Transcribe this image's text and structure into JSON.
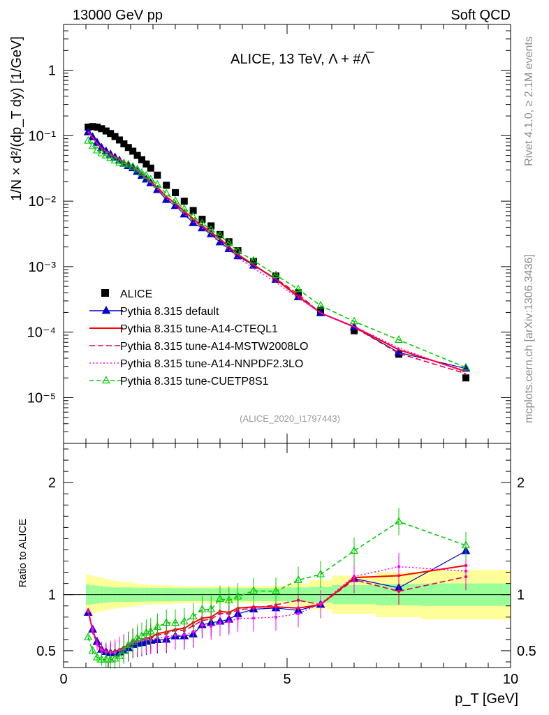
{
  "header": {
    "left": "13000 GeV pp",
    "right": "Soft QCD"
  },
  "side_text": {
    "rivet": "Rivet 4.1.0, ≥ 2.1M events",
    "site": "mcplots.cern.ch [arXiv:1306.3436]"
  },
  "chart_data": {
    "type": "line",
    "title": "ALICE, 13 TeV, Λ + #Λ̅",
    "analysis_tag": "(ALICE_2020_I1797443)",
    "xlabel": "p_T [GeV]",
    "ylabel": "1/N × d²/(dp_T dy) [1/GeV]",
    "ratio_ylabel": "Ratio to ALICE",
    "xlim": [
      0,
      10
    ],
    "ylim_main": [
      2e-06,
      5
    ],
    "ylim_ratio": [
      0.35,
      2.35
    ],
    "x_ticks": [
      "0",
      "5",
      "10"
    ],
    "y_ticks_main": [
      "10⁻⁵",
      "10⁻⁴",
      "10⁻³",
      "10⁻²",
      "10⁻¹",
      "1"
    ],
    "y_ticks_ratio": [
      "0.5",
      "1",
      "2"
    ],
    "x": [
      0.55,
      0.65,
      0.75,
      0.85,
      0.95,
      1.05,
      1.15,
      1.25,
      1.35,
      1.45,
      1.55,
      1.65,
      1.75,
      1.85,
      1.95,
      2.1,
      2.3,
      2.5,
      2.7,
      2.9,
      3.1,
      3.3,
      3.5,
      3.7,
      3.9,
      4.25,
      4.75,
      5.25,
      5.75,
      6.5,
      7.5,
      9.0
    ],
    "series": [
      {
        "name": "ALICE",
        "style": "data",
        "values": [
          0.135,
          0.138,
          0.135,
          0.128,
          0.118,
          0.108,
          0.097,
          0.086,
          0.075,
          0.066,
          0.058,
          0.05,
          0.043,
          0.037,
          0.032,
          0.025,
          0.0175,
          0.0135,
          0.01,
          0.0072,
          0.0053,
          0.0042,
          0.0031,
          0.0024,
          0.00175,
          0.0012,
          0.00072,
          0.0004,
          0.000215,
          0.000105,
          4.6e-05,
          2e-05
        ]
      },
      {
        "name": "Pythia 8.315 default",
        "color": "#0000cc",
        "style": "default",
        "values": [
          0.1134,
          0.0952,
          0.0783,
          0.0653,
          0.0578,
          0.0518,
          0.0466,
          0.0418,
          0.0375,
          0.0346,
          0.0321,
          0.0282,
          0.0245,
          0.0215,
          0.0189,
          0.0149,
          0.0105,
          0.0085,
          0.0063,
          0.00466,
          0.00387,
          0.00315,
          0.00236,
          0.00187,
          0.00145,
          0.001044,
          0.000634,
          0.000344,
          0.000196,
          0.00012,
          4.88e-05,
          2.78e-05
        ]
      },
      {
        "name": "Pythia 8.315 tune-A14-CTEQL1",
        "color": "#ff0000",
        "style": "solid",
        "values": [
          0.1161,
          0.0938,
          0.0756,
          0.064,
          0.0578,
          0.0529,
          0.0476,
          0.0439,
          0.0398,
          0.0363,
          0.0336,
          0.0295,
          0.0254,
          0.0226,
          0.0198,
          0.0163,
          0.0117,
          0.0093,
          0.007,
          0.0054,
          0.00419,
          0.00336,
          0.00264,
          0.00202,
          0.00154,
          0.001068,
          0.000641,
          0.000352,
          0.000196,
          0.000121,
          5.38e-05,
          2.52e-05
        ]
      },
      {
        "name": "Pythia 8.315 tune-A14-MSTW2008LO",
        "color": "#e6004d",
        "style": "dashed",
        "values": [
          0.1148,
          0.0938,
          0.0756,
          0.064,
          0.0578,
          0.0524,
          0.0476,
          0.0434,
          0.0398,
          0.0363,
          0.0336,
          0.029,
          0.0254,
          0.0226,
          0.0195,
          0.016,
          0.0114,
          0.0092,
          0.0068,
          0.0052,
          0.00408,
          0.00328,
          0.00258,
          0.00199,
          0.00151,
          0.001056,
          0.000655,
          0.00038,
          0.000196,
          0.000119,
          4.74e-05,
          2.32e-05
        ]
      },
      {
        "name": "Pythia 8.315 tune-A14-NNPDF2.3LO",
        "color": "#ff00ff",
        "style": "dotted",
        "values": [
          0.1148,
          0.0952,
          0.0756,
          0.0653,
          0.0578,
          0.0524,
          0.0466,
          0.0434,
          0.0386,
          0.0357,
          0.0331,
          0.029,
          0.0254,
          0.0222,
          0.0189,
          0.0153,
          0.0109,
          0.0086,
          0.0064,
          0.00482,
          0.00387,
          0.00302,
          0.00232,
          0.00182,
          0.00138,
          0.000948,
          0.000576,
          0.000332,
          0.000198,
          0.000122,
          5.75e-05,
          2.42e-05
        ]
      },
      {
        "name": "Pythia 8.315 tune-CUETP8S1",
        "color": "#00cc00",
        "style": "dashed-open",
        "values": [
          0.0837,
          0.069,
          0.0594,
          0.0538,
          0.0496,
          0.0454,
          0.0417,
          0.0387,
          0.0375,
          0.0363,
          0.0336,
          0.0306,
          0.0271,
          0.0244,
          0.0215,
          0.0178,
          0.0131,
          0.0101,
          0.0076,
          0.0058,
          0.0046,
          0.00365,
          0.00298,
          0.00228,
          0.00172,
          0.00124,
          0.000742,
          0.000452,
          0.000254,
          0.000146,
          7.6e-05,
          2.88e-05
        ]
      }
    ],
    "uncertainty_band": {
      "x_edges": [
        0.5,
        0.6,
        0.7,
        0.8,
        0.9,
        1.0,
        1.1,
        1.2,
        1.3,
        1.4,
        1.5,
        1.6,
        1.7,
        1.8,
        1.9,
        2.0,
        2.2,
        2.4,
        2.6,
        2.8,
        3.0,
        3.2,
        3.4,
        3.6,
        3.8,
        4.0,
        4.5,
        5.0,
        5.5,
        6.0,
        7.0,
        8.0,
        10.0
      ],
      "inner": [
        0.09,
        0.085,
        0.08,
        0.075,
        0.07,
        0.068,
        0.066,
        0.065,
        0.065,
        0.065,
        0.064,
        0.063,
        0.062,
        0.062,
        0.062,
        0.06,
        0.06,
        0.058,
        0.058,
        0.058,
        0.058,
        0.058,
        0.058,
        0.058,
        0.058,
        0.058,
        0.058,
        0.065,
        0.07,
        0.085,
        0.095,
        0.1
      ],
      "outer": [
        0.18,
        0.17,
        0.16,
        0.15,
        0.14,
        0.13,
        0.125,
        0.12,
        0.115,
        0.11,
        0.105,
        0.1,
        0.095,
        0.09,
        0.088,
        0.085,
        0.085,
        0.08,
        0.075,
        0.075,
        0.075,
        0.075,
        0.075,
        0.075,
        0.075,
        0.075,
        0.08,
        0.1,
        0.13,
        0.17,
        0.2,
        0.22
      ]
    }
  }
}
